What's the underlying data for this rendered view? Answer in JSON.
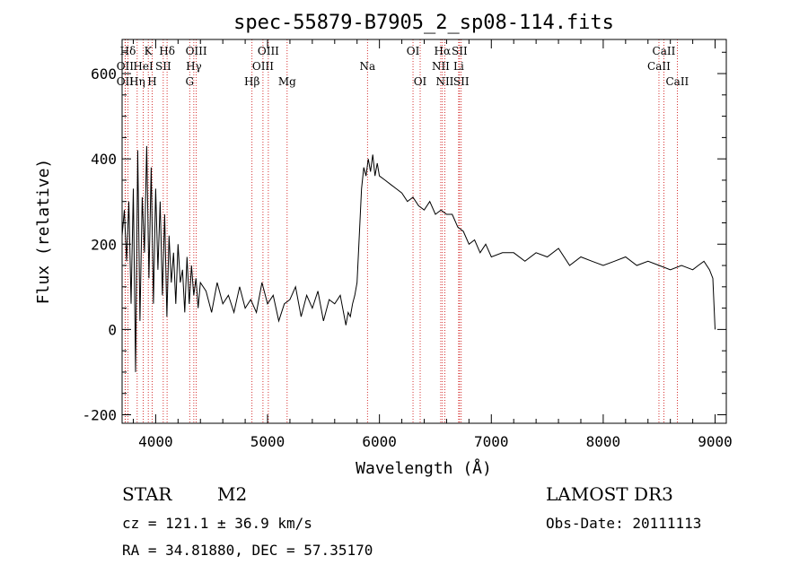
{
  "chart_data": {
    "type": "line",
    "title": "spec-55879-B7905_2_sp08-114.fits",
    "xlabel": "Wavelength (Å)",
    "ylabel": "Flux (relative)",
    "xlim": [
      3700,
      9100
    ],
    "ylim": [
      -220,
      680
    ],
    "xticks": [
      4000,
      5000,
      6000,
      7000,
      8000,
      9000
    ],
    "yticks": [
      -200,
      0,
      200,
      400,
      600
    ],
    "grid": false,
    "series": [
      {
        "name": "flux",
        "x": [
          3700,
          3720,
          3740,
          3760,
          3780,
          3800,
          3820,
          3840,
          3860,
          3880,
          3900,
          3920,
          3940,
          3960,
          3980,
          4000,
          4020,
          4040,
          4060,
          4080,
          4100,
          4120,
          4140,
          4160,
          4180,
          4200,
          4220,
          4240,
          4260,
          4280,
          4300,
          4320,
          4340,
          4360,
          4380,
          4400,
          4450,
          4500,
          4550,
          4600,
          4650,
          4700,
          4750,
          4800,
          4850,
          4900,
          4950,
          5000,
          5050,
          5100,
          5150,
          5200,
          5250,
          5300,
          5350,
          5400,
          5450,
          5500,
          5550,
          5600,
          5650,
          5700,
          5720,
          5740,
          5760,
          5780,
          5800,
          5820,
          5840,
          5860,
          5880,
          5900,
          5920,
          5940,
          5960,
          5980,
          6000,
          6050,
          6100,
          6150,
          6200,
          6250,
          6300,
          6350,
          6400,
          6450,
          6500,
          6550,
          6600,
          6650,
          6700,
          6750,
          6800,
          6850,
          6900,
          6950,
          7000,
          7100,
          7200,
          7300,
          7400,
          7500,
          7600,
          7700,
          7800,
          7900,
          8000,
          8100,
          8200,
          8300,
          8400,
          8500,
          8600,
          8700,
          8800,
          8850,
          8900,
          8950,
          8980,
          9000
        ],
        "y": [
          220,
          280,
          160,
          300,
          60,
          330,
          -100,
          420,
          20,
          310,
          180,
          430,
          120,
          380,
          60,
          330,
          140,
          300,
          80,
          270,
          30,
          220,
          110,
          180,
          60,
          200,
          110,
          140,
          40,
          170,
          60,
          150,
          80,
          120,
          50,
          110,
          90,
          40,
          110,
          60,
          80,
          40,
          100,
          50,
          70,
          40,
          110,
          60,
          80,
          20,
          60,
          70,
          100,
          30,
          80,
          50,
          90,
          20,
          70,
          60,
          80,
          10,
          40,
          30,
          60,
          80,
          110,
          220,
          330,
          380,
          360,
          400,
          370,
          410,
          360,
          390,
          360,
          350,
          340,
          330,
          320,
          300,
          310,
          290,
          280,
          300,
          270,
          280,
          270,
          270,
          240,
          230,
          200,
          210,
          180,
          200,
          170,
          180,
          180,
          160,
          180,
          170,
          190,
          150,
          170,
          160,
          150,
          160,
          170,
          150,
          160,
          150,
          140,
          150,
          140,
          150,
          160,
          140,
          120,
          0
        ]
      }
    ],
    "line_markers": [
      {
        "label": "Hδ",
        "x": 3752,
        "row": 1
      },
      {
        "label": "OII",
        "x": 3727,
        "row": 2
      },
      {
        "label": "OII",
        "x": 3727,
        "row": 3
      },
      {
        "label": "K",
        "x": 3934,
        "row": 1
      },
      {
        "label": "HeI",
        "x": 3889,
        "row": 2
      },
      {
        "label": "SII",
        "x": 4068,
        "row": 2
      },
      {
        "label": "Hη",
        "x": 3835,
        "row": 3
      },
      {
        "label": "H",
        "x": 3969,
        "row": 3
      },
      {
        "label": "Hδ",
        "x": 4102,
        "row": 1
      },
      {
        "label": "OIII",
        "x": 4363,
        "row": 1
      },
      {
        "label": "Hγ",
        "x": 4341,
        "row": 2
      },
      {
        "label": "G",
        "x": 4304,
        "row": 3
      },
      {
        "label": "Hβ",
        "x": 4861,
        "row": 3
      },
      {
        "label": "OIII",
        "x": 5007,
        "row": 1
      },
      {
        "label": "OIII",
        "x": 4959,
        "row": 2
      },
      {
        "label": "Mg",
        "x": 5175,
        "row": 3
      },
      {
        "label": "Na",
        "x": 5893,
        "row": 2
      },
      {
        "label": "OI",
        "x": 6300,
        "row": 1
      },
      {
        "label": "OI",
        "x": 6364,
        "row": 3
      },
      {
        "label": "Hα",
        "x": 6563,
        "row": 1
      },
      {
        "label": "SII",
        "x": 6716,
        "row": 1
      },
      {
        "label": "NII",
        "x": 6548,
        "row": 2
      },
      {
        "label": "Li",
        "x": 6708,
        "row": 2
      },
      {
        "label": "NII",
        "x": 6584,
        "row": 3
      },
      {
        "label": "SII",
        "x": 6731,
        "row": 3
      },
      {
        "label": "CaII",
        "x": 8542,
        "row": 1
      },
      {
        "label": "CaII",
        "x": 8498,
        "row": 2
      },
      {
        "label": "CaII",
        "x": 8662,
        "row": 3
      }
    ]
  },
  "info": {
    "object_class": "STAR",
    "subclass": "M2",
    "survey": "LAMOST DR3",
    "cz": "cz = 121.1 ± 36.9 km/s",
    "obs_date": "Obs-Date: 20111113",
    "coords": "RA =  34.81880, DEC =  57.35170"
  },
  "colors": {
    "plot": "#000000",
    "marker_line": "#cc0000"
  }
}
